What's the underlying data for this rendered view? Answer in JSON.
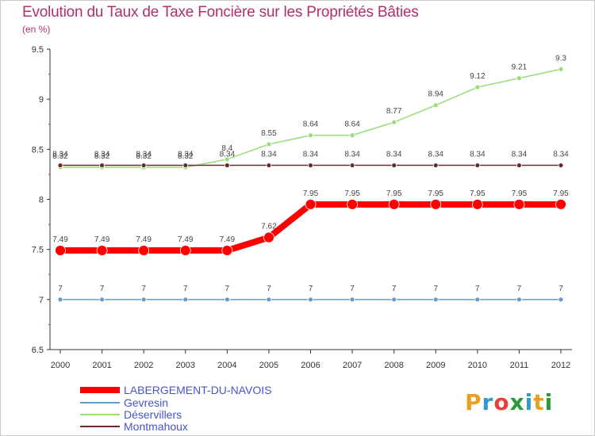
{
  "header": {
    "title": "Evolution du Taux de Taxe Foncière sur les Propriétés Bâties",
    "unit": "(en %)"
  },
  "logo": {
    "text": "Proxiti",
    "colors": [
      "#e8a020",
      "#3399cc",
      "#e84040",
      "#2a9a3a",
      "#3399cc",
      "#e8a020",
      "#2a9a3a"
    ]
  },
  "chart_data": {
    "type": "line",
    "title": "Evolution du Taux de Taxe Foncière sur les Propriétés Bâties",
    "ylabel": "(en %)",
    "xlabel": "",
    "x": [
      "2000",
      "2001",
      "2002",
      "2003",
      "2004",
      "2005",
      "2006",
      "2007",
      "2008",
      "2009",
      "2010",
      "2011",
      "2012"
    ],
    "ylim": [
      6.5,
      9.5
    ],
    "yticks": [
      "6.5",
      "7",
      "7.5",
      "8",
      "8.5",
      "9",
      "9.5"
    ],
    "grid": false,
    "legend_position": "bottom-left",
    "series": [
      {
        "name": "LABERGEMENT-DU-NAVOIS",
        "color": "#ff0000",
        "values": [
          7.49,
          7.49,
          7.49,
          7.49,
          7.49,
          7.62,
          7.95,
          7.95,
          7.95,
          7.95,
          7.95,
          7.95,
          7.95
        ],
        "labels": [
          "7.49",
          "7.49",
          "7.49",
          "7.49",
          "7.49",
          "7.62",
          "7.95",
          "7.95",
          "7.95",
          "7.95",
          "7.95",
          "7.95",
          "7.95"
        ]
      },
      {
        "name": "Gevresin",
        "color": "#6699cc",
        "values": [
          7,
          7,
          7,
          7,
          7,
          7,
          7,
          7,
          7,
          7,
          7,
          7,
          7
        ],
        "labels": [
          "7",
          "7",
          "7",
          "7",
          "7",
          "7",
          "7",
          "7",
          "7",
          "7",
          "7",
          "7",
          "7"
        ]
      },
      {
        "name": "Déservillers",
        "color": "#99dd77",
        "values": [
          8.32,
          8.32,
          8.32,
          8.32,
          8.4,
          8.55,
          8.64,
          8.64,
          8.77,
          8.94,
          9.12,
          9.21,
          9.3
        ],
        "labels": [
          "8.32",
          "8.32",
          "8.32",
          "8.32",
          "8.4",
          "8.55",
          "8.64",
          "8.64",
          "8.77",
          "8.94",
          "9.12",
          "9.21",
          "9.3"
        ]
      },
      {
        "name": "Montmahoux",
        "color": "#6b2a2a",
        "values": [
          8.34,
          8.34,
          8.34,
          8.34,
          8.34,
          8.34,
          8.34,
          8.34,
          8.34,
          8.34,
          8.34,
          8.34,
          8.34
        ],
        "labels": [
          "8.34",
          "8.34",
          "8.34",
          "8.34",
          "8.34",
          "8.34",
          "8.34",
          "8.34",
          "8.34",
          "8.34",
          "8.34",
          "8.34",
          "8.34"
        ]
      }
    ]
  }
}
